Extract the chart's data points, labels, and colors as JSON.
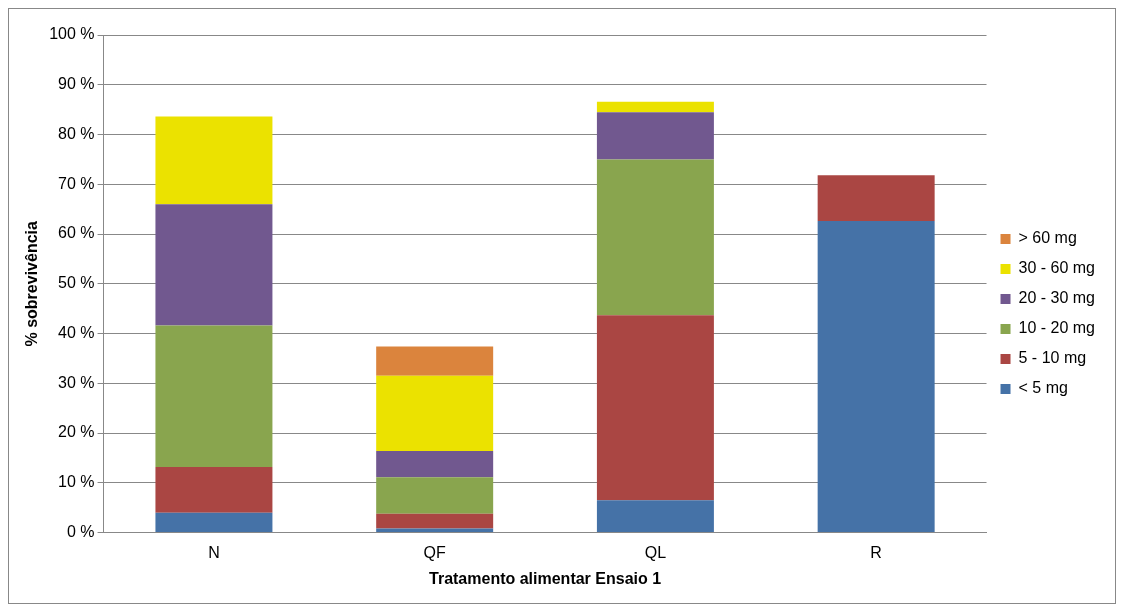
{
  "chart_data": {
    "type": "bar",
    "stacked": true,
    "xlabel": "Tratamento alimentar Ensaio 1",
    "ylabel": "% sobrevivência",
    "categories": [
      "N",
      "QF",
      "QL",
      "R"
    ],
    "series": [
      {
        "name": "< 5 mg",
        "color": "#4572a7",
        "values": [
          4.0,
          0.8,
          6.5,
          62.6
        ]
      },
      {
        "name": "5 - 10 mg",
        "color": "#aa4643",
        "values": [
          9.2,
          3.0,
          37.2,
          9.2
        ]
      },
      {
        "name": "10 - 20 mg",
        "color": "#89a54e",
        "values": [
          28.4,
          7.3,
          31.3,
          null
        ]
      },
      {
        "name": "20 - 30 mg",
        "color": "#71588f",
        "values": [
          24.4,
          5.3,
          9.5,
          null
        ]
      },
      {
        "name": "30 - 60 mg",
        "color": "#ebe200",
        "values": [
          17.6,
          15.1,
          2.1,
          null
        ]
      },
      {
        "name": "> 60 mg",
        "color": "#db843d",
        "values": [
          null,
          5.9,
          null,
          null
        ]
      }
    ],
    "ylim": [
      0,
      100
    ],
    "yticks": [
      {
        "value": 0,
        "label": "0 %"
      },
      {
        "value": 10,
        "label": "10 %"
      },
      {
        "value": 20,
        "label": "20 %"
      },
      {
        "value": 30,
        "label": "30 %"
      },
      {
        "value": 40,
        "label": "40 %"
      },
      {
        "value": 50,
        "label": "50 %"
      },
      {
        "value": 60,
        "label": "60 %"
      },
      {
        "value": 70,
        "label": "70 %"
      },
      {
        "value": 80,
        "label": "80 %"
      },
      {
        "value": 90,
        "label": "90 %"
      },
      {
        "value": 100,
        "label": "100 %"
      }
    ],
    "grid": "y",
    "legend": "right"
  }
}
